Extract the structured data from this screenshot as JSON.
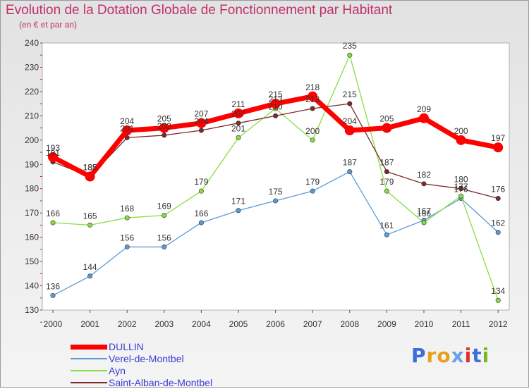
{
  "header": {
    "title": "Evolution de la Dotation Globale de Fonctionnement par Habitant",
    "subtitle": "(en € et par an)"
  },
  "brand": {
    "logo_letters": [
      "P",
      "r",
      "o",
      "x",
      "i",
      "t",
      "i"
    ],
    "logo_colors": [
      "#3a6fd8",
      "#e8a020",
      "#e8a020",
      "#6aa0e8",
      "#e03030",
      "#3a6fd8",
      "#7ab820"
    ]
  },
  "chart_data": {
    "type": "line",
    "title": "Evolution de la Dotation Globale de Fonctionnement par Habitant",
    "subtitle": "(en € et par an)",
    "categories": [
      "2000",
      "2001",
      "2002",
      "2003",
      "2004",
      "2005",
      "2006",
      "2007",
      "2008",
      "2009",
      "2010",
      "2011",
      "2012"
    ],
    "ylim": [
      130,
      240
    ],
    "yticks": [
      130,
      140,
      150,
      160,
      170,
      180,
      190,
      200,
      210,
      220,
      230,
      240
    ],
    "grid": false,
    "legend_position": "bottom-left",
    "series": [
      {
        "name": "DULLIN",
        "color": "#ff0000",
        "values": [
          193,
          185,
          204,
          205,
          207,
          211,
          215,
          218,
          204,
          205,
          209,
          200,
          197
        ]
      },
      {
        "name": "Verel-de-Montbel",
        "color": "#5b9bd5",
        "values": [
          136,
          144,
          156,
          156,
          166,
          171,
          175,
          179,
          187,
          161,
          167,
          176,
          162
        ]
      },
      {
        "name": "Ayn",
        "color": "#88dd44",
        "values": [
          166,
          165,
          168,
          169,
          179,
          201,
          213,
          200,
          235,
          179,
          166,
          177,
          134
        ]
      },
      {
        "name": "Saint-Alban-de-Montbel",
        "color": "#7a2a2a",
        "values": [
          191,
          185,
          201,
          202,
          204,
          207,
          210,
          213,
          215,
          187,
          182,
          180,
          176
        ]
      }
    ]
  }
}
